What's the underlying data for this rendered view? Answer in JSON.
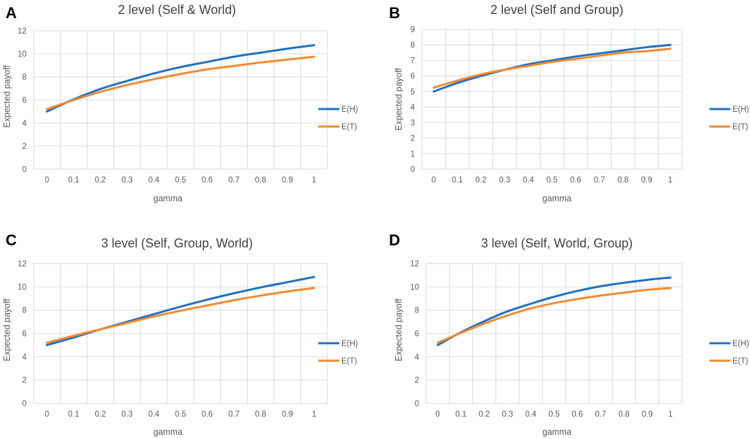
{
  "chart_data": [
    {
      "panel": "A",
      "type": "line",
      "title": "2 level (Self & World)",
      "xlabel": "gamma",
      "ylabel": "Expected payoff",
      "x": [
        "0",
        "0.1",
        "0.2",
        "0.3",
        "0.4",
        "0.5",
        "0.6",
        "0.7",
        "0.8",
        "0.9",
        "1"
      ],
      "ylim": [
        0,
        12
      ],
      "yticks": [
        0,
        2,
        4,
        6,
        8,
        10,
        12
      ],
      "grid": true,
      "legend": "right",
      "series": [
        {
          "name": "E(H)",
          "color": "#1f6fc5",
          "values": [
            5.0,
            6.05,
            6.95,
            7.65,
            8.3,
            8.85,
            9.3,
            9.75,
            10.1,
            10.45,
            10.75
          ]
        },
        {
          "name": "E(T)",
          "color": "#f28a2e",
          "values": [
            5.2,
            6.0,
            6.7,
            7.3,
            7.8,
            8.25,
            8.65,
            8.95,
            9.25,
            9.5,
            9.75
          ]
        }
      ]
    },
    {
      "panel": "B",
      "type": "line",
      "title": "2 level (Self and Group)",
      "xlabel": "gamma",
      "ylabel": "Expected payoff",
      "x": [
        "0",
        "0.1",
        "0.2",
        "0.3",
        "0.4",
        "0.5",
        "0.6",
        "0.7",
        "0.8",
        "0.9",
        "1"
      ],
      "ylim": [
        0,
        9
      ],
      "yticks": [
        0,
        1,
        2,
        3,
        4,
        5,
        6,
        7,
        8,
        9
      ],
      "grid": true,
      "legend": "right",
      "series": [
        {
          "name": "E(H)",
          "color": "#1f6fc5",
          "values": [
            5.0,
            5.55,
            6.0,
            6.4,
            6.75,
            7.0,
            7.25,
            7.45,
            7.65,
            7.85,
            8.0
          ]
        },
        {
          "name": "E(T)",
          "color": "#f28a2e",
          "values": [
            5.25,
            5.7,
            6.1,
            6.4,
            6.65,
            6.9,
            7.1,
            7.3,
            7.5,
            7.6,
            7.75
          ]
        }
      ]
    },
    {
      "panel": "C",
      "type": "line",
      "title": "3 level (Self, Group, World)",
      "xlabel": "gamma",
      "ylabel": "Expected payoff",
      "x": [
        "0",
        "0.1",
        "0.2",
        "0.3",
        "0.4",
        "0.5",
        "0.6",
        "0.7",
        "0.8",
        "0.9",
        "1"
      ],
      "ylim": [
        0,
        12
      ],
      "yticks": [
        0,
        2,
        4,
        6,
        8,
        10,
        12
      ],
      "grid": true,
      "legend": "right",
      "series": [
        {
          "name": "E(H)",
          "color": "#1f6fc5",
          "values": [
            5.0,
            5.65,
            6.35,
            7.0,
            7.65,
            8.3,
            8.9,
            9.45,
            9.95,
            10.4,
            10.85
          ]
        },
        {
          "name": "E(T)",
          "color": "#f28a2e",
          "values": [
            5.2,
            5.8,
            6.35,
            6.9,
            7.45,
            7.95,
            8.4,
            8.85,
            9.25,
            9.6,
            9.9
          ]
        }
      ]
    },
    {
      "panel": "D",
      "type": "line",
      "title": "3 level (Self, World, Group)",
      "xlabel": "gamma",
      "ylabel": "Expected payoff",
      "x": [
        "0",
        "0.1",
        "0.2",
        "0.3",
        "0.4",
        "0.5",
        "0.6",
        "0.7",
        "0.8",
        "0.9",
        "1"
      ],
      "ylim": [
        0,
        12
      ],
      "yticks": [
        0,
        2,
        4,
        6,
        8,
        10,
        12
      ],
      "grid": true,
      "legend": "right",
      "series": [
        {
          "name": "E(H)",
          "color": "#1f6fc5",
          "values": [
            5.0,
            6.1,
            7.05,
            7.9,
            8.55,
            9.15,
            9.65,
            10.05,
            10.35,
            10.6,
            10.8
          ]
        },
        {
          "name": "E(T)",
          "color": "#f28a2e",
          "values": [
            5.2,
            6.05,
            6.85,
            7.55,
            8.15,
            8.6,
            8.95,
            9.25,
            9.5,
            9.75,
            9.9
          ]
        }
      ]
    }
  ]
}
